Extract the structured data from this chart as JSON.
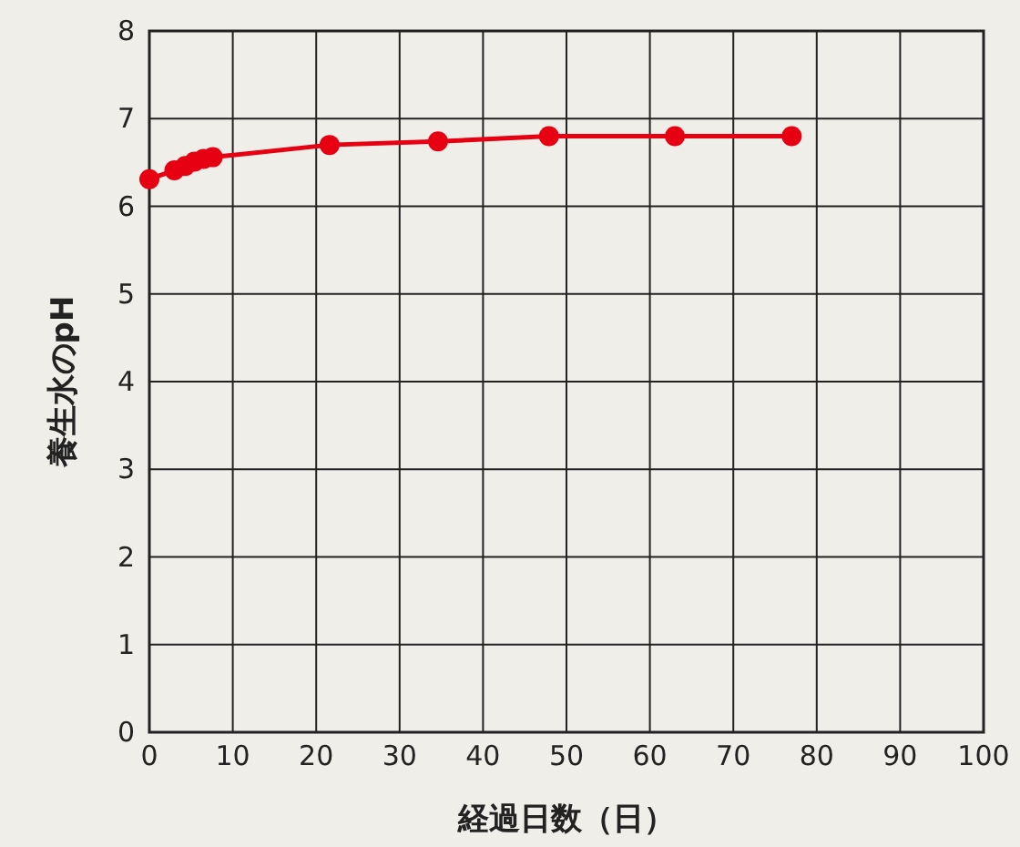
{
  "chart_data": {
    "type": "line",
    "xlabel": "経過日数（日）",
    "ylabel": "養生水のpH",
    "x": [
      0,
      3,
      4.3,
      5.4,
      6.5,
      7.6,
      21.6,
      34.6,
      47.9,
      63,
      77
    ],
    "series": [
      {
        "color": "#e60012",
        "values": [
          6.31,
          6.41,
          6.46,
          6.51,
          6.54,
          6.56,
          6.7,
          6.74,
          6.8,
          6.8,
          6.8
        ]
      }
    ],
    "xlim": [
      0,
      100
    ],
    "xticks": [
      0,
      10,
      20,
      30,
      40,
      50,
      60,
      70,
      80,
      90,
      100
    ],
    "ylim": [
      0,
      8
    ],
    "yticks": [
      0,
      1,
      2,
      3,
      4,
      5,
      6,
      7,
      8
    ],
    "grid": true,
    "marker": "circle",
    "line_style": "solid"
  }
}
